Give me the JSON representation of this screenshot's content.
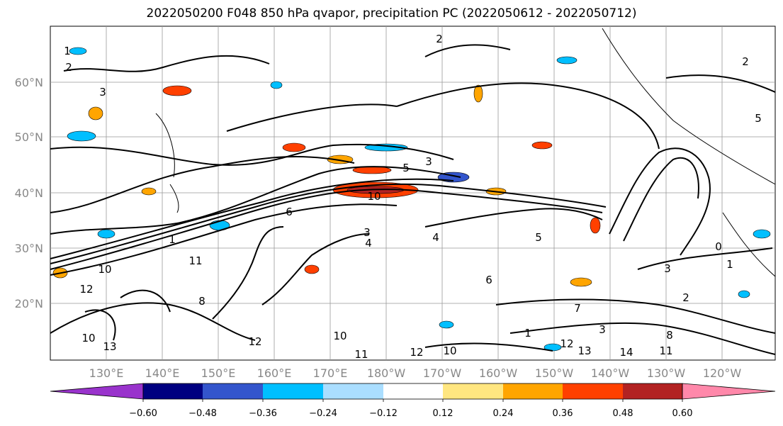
{
  "title": "2022050200 F048 850 hPa qvapor, precipitation PC (2022050612 - 2022050712)",
  "map": {
    "lat_labels": [
      "60°N",
      "50°N",
      "40°N",
      "30°N",
      "20°N"
    ],
    "lon_labels": [
      "130°E",
      "140°E",
      "150°E",
      "160°E",
      "170°E",
      "180°W",
      "170°W",
      "160°W",
      "150°W",
      "140°W",
      "130°W",
      "120°W"
    ],
    "contour_labels": [
      "1",
      "2",
      "2",
      "3",
      "3",
      "5",
      "10",
      "6",
      "3",
      "4",
      "1",
      "11",
      "10",
      "12",
      "13",
      "10",
      "12",
      "11",
      "12",
      "10",
      "12",
      "13",
      "14",
      "11",
      "8",
      "7",
      "3",
      "5",
      "1",
      "6",
      "2",
      "0",
      "5",
      "1",
      "2",
      "3",
      "4",
      "8",
      "10"
    ]
  },
  "colorbar": {
    "tick_labels": [
      "−0.60",
      "−0.48",
      "−0.36",
      "−0.24",
      "−0.12",
      "0.12",
      "0.24",
      "0.36",
      "0.48",
      "0.60"
    ],
    "colors": [
      "#9933cc",
      "#000080",
      "#3355cc",
      "#00bfff",
      "#aadeff",
      "#ffffff",
      "#ffe680",
      "#ffa500",
      "#ff4000",
      "#b22222",
      "#ff88aa"
    ]
  }
}
